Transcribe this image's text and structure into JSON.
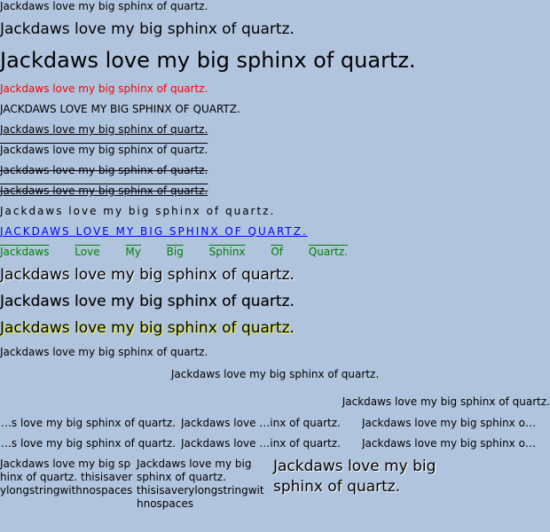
{
  "sample": "Jackdaws love my big sphinx of quartz.",
  "spread_words": [
    "Jackdaws",
    "Love",
    "My",
    "Big",
    "Sphinx",
    "Of",
    "Quartz."
  ],
  "ellipsis_rows": [
    {
      "left": "Jackdaws love my big sphinx of quartz.",
      "middle": "Jackdaws love my big sphinx of quartz.",
      "right": "Jackdaws love my big sphinx of quartz."
    },
    {
      "left": "Jackdaws love my big sphinx of quartz.",
      "middle": "Jackdaws love my big sphinx of quartz.",
      "right": "Jackdaws love my big sphinx of quartz."
    }
  ],
  "middle_fragments": [
    "Jackdaws love ",
    "inx of quartz."
  ],
  "wrap": {
    "box1": "Jackdaws love my big sphinx of quartz. thisisaverylongstringwithnospaces",
    "box2": "Jackdaws love my big sphinx of quartz. thisisaverylongstringwithnospaces",
    "box3": "Jackdaws love my big sphinx of quartz."
  },
  "colors": {
    "background": "#b0c4de",
    "red_line": "#ff0000",
    "link_line": "#0000ff",
    "green_line": "#008000",
    "shadow_yellow": "#ffff00",
    "shadow_white": "#ffffff"
  }
}
